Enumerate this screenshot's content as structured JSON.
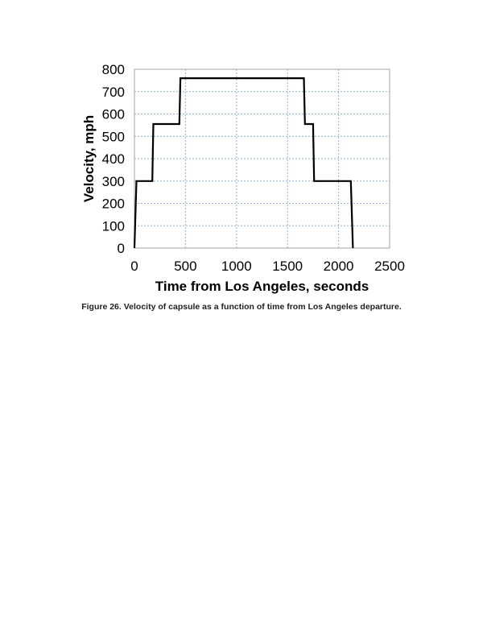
{
  "caption": "Figure 26. Velocity of capsule as a function of time from Los Angeles departure.",
  "chart_data": {
    "type": "line",
    "xlabel": "Time from Los Angeles, seconds",
    "ylabel": "Velocity, mph",
    "xlim": [
      0,
      2500
    ],
    "ylim": [
      0,
      800
    ],
    "xticks": [
      0,
      500,
      1000,
      1500,
      2000,
      2500
    ],
    "yticks": [
      0,
      100,
      200,
      300,
      400,
      500,
      600,
      700,
      800
    ],
    "grid": true,
    "grid_style": "dotted",
    "line_color": "#000000",
    "grid_color": "#8fb0d8",
    "series": [
      {
        "x": [
          0,
          20,
          175,
          185,
          440,
          450,
          1660,
          1670,
          1750,
          1760,
          2120,
          2140
        ],
        "y": [
          0,
          300,
          300,
          555,
          555,
          760,
          760,
          555,
          555,
          300,
          300,
          0
        ]
      }
    ]
  }
}
